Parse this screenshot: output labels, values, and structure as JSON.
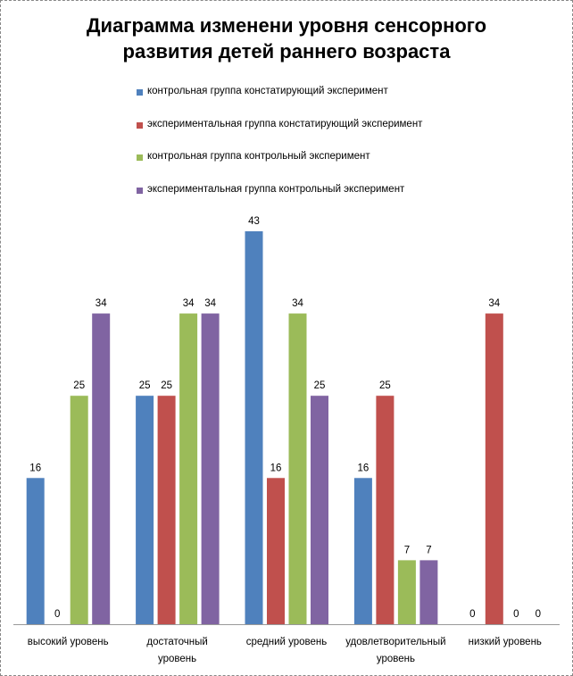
{
  "chart_data": {
    "type": "bar",
    "title": "Диаграмма изменени уровня сенсорного развития детей раннего возраста",
    "title_lines": [
      "Диаграмма изменени уровня сенсорного",
      "развития детей раннего возраста"
    ],
    "categories": [
      "высокий уровень",
      "достаточный уровень",
      "средний уровень",
      "удовлетворительный уровень",
      "низкий уровень"
    ],
    "category_lines": [
      [
        "высокий уровень"
      ],
      [
        "достаточный",
        "уровень"
      ],
      [
        "средний уровень"
      ],
      [
        "удовлетворительный",
        "уровень"
      ],
      [
        "низкий уровень"
      ]
    ],
    "series": [
      {
        "name": "контрольная группа констатирующий эксперимент",
        "color": "#4F81BD",
        "values": [
          16,
          25,
          43,
          16,
          0
        ]
      },
      {
        "name": "экспериментальная группа констатирующий эксперимент",
        "color": "#C0504D",
        "values": [
          0,
          25,
          16,
          25,
          34
        ]
      },
      {
        "name": "контрольная группа контрольный эксперимент",
        "color": "#9BBB59",
        "values": [
          25,
          34,
          34,
          7,
          0
        ]
      },
      {
        "name": "экспериментальная группа контрольный эксперимент",
        "color": "#8064A2",
        "values": [
          34,
          34,
          25,
          7,
          0
        ]
      }
    ],
    "xlabel": "",
    "ylabel": "",
    "ylim": [
      0,
      43
    ],
    "grid": false,
    "legend": "top-center",
    "data_labels": true
  }
}
